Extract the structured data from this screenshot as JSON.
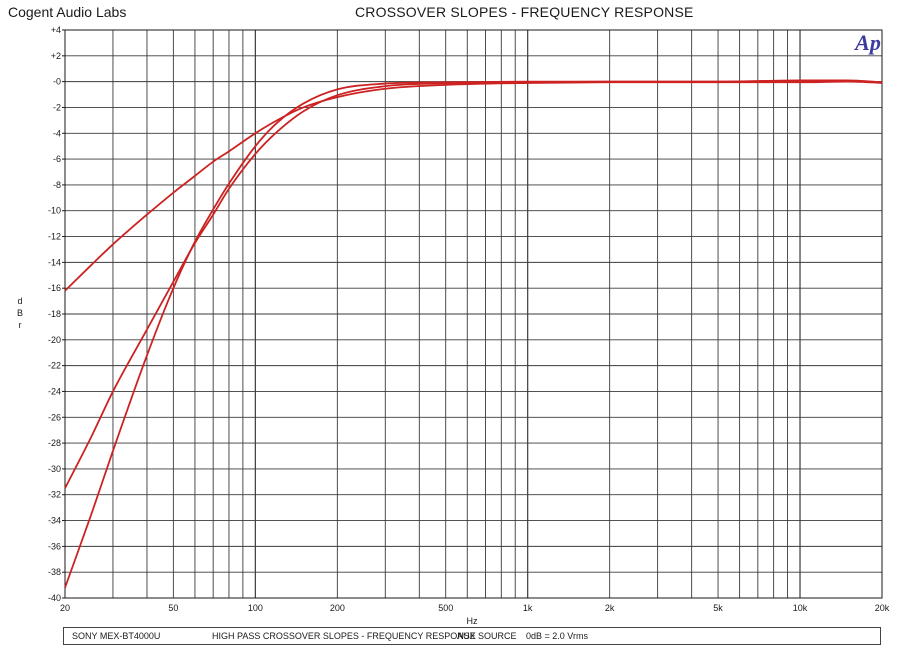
{
  "header": {
    "lab_name": "Cogent Audio Labs",
    "chart_title": "CROSSOVER SLOPES  -  FREQUENCY RESPONSE"
  },
  "footer": {
    "device": "SONY MEX-BT4000U",
    "description": "HIGH PASS CROSSOVER SLOPES -  FREQUENCY RESPONSE",
    "source": "AUX SOURCE",
    "reference": "0dB = 2.0 Vrms"
  },
  "logo": {
    "text": "Ap",
    "color": "#3a3aa0"
  },
  "colors": {
    "curve": "#cc2222",
    "grid": "#3a3a3a",
    "axis": "#1a1a1a"
  },
  "chart_data": {
    "type": "line",
    "title": "CROSSOVER SLOPES  -  FREQUENCY RESPONSE",
    "xlabel": "Hz",
    "ylabel": "dBr",
    "xscale": "log",
    "xlim": [
      20,
      20000
    ],
    "ylim": [
      -40,
      4
    ],
    "grid": true,
    "x_tick_labels": [
      {
        "value": 20,
        "label": "20"
      },
      {
        "value": 50,
        "label": "50"
      },
      {
        "value": 100,
        "label": "100"
      },
      {
        "value": 200,
        "label": "200"
      },
      {
        "value": 500,
        "label": "500"
      },
      {
        "value": 1000,
        "label": "1k"
      },
      {
        "value": 2000,
        "label": "2k"
      },
      {
        "value": 5000,
        "label": "5k"
      },
      {
        "value": 10000,
        "label": "10k"
      },
      {
        "value": 20000,
        "label": "20k"
      }
    ],
    "y_tick_labels": [
      "+4",
      "+2",
      "-0",
      "-2",
      "-4",
      "-6",
      "-8",
      "-10",
      "-12",
      "-14",
      "-16",
      "-18",
      "-20",
      "-22",
      "-24",
      "-26",
      "-28",
      "-30",
      "-32",
      "-34",
      "-36",
      "-38",
      "-40"
    ],
    "series": [
      {
        "x": [
          20,
          25,
          30,
          40,
          50,
          60,
          70,
          80,
          100,
          120,
          150,
          200,
          300,
          500,
          1000,
          2000,
          5000,
          10000,
          15000,
          20000
        ],
        "y": [
          -16.2,
          -14.2,
          -12.6,
          -10.3,
          -8.6,
          -7.3,
          -6.2,
          -5.4,
          -4.0,
          -3.0,
          -2.0,
          -1.2,
          -0.55,
          -0.25,
          -0.1,
          -0.05,
          -0.05,
          -0.05,
          0.0,
          -0.1
        ]
      },
      {
        "x": [
          20,
          25,
          30,
          40,
          50,
          60,
          70,
          80,
          100,
          120,
          150,
          200,
          300,
          500,
          1000,
          2000,
          5000,
          10000,
          15000,
          20000
        ],
        "y": [
          -31.5,
          -27.5,
          -24.0,
          -19.2,
          -15.5,
          -12.5,
          -10.3,
          -8.3,
          -5.6,
          -3.9,
          -2.3,
          -1.05,
          -0.35,
          -0.12,
          -0.05,
          0.0,
          0.0,
          0.05,
          0.05,
          -0.05
        ]
      },
      {
        "x": [
          20,
          25,
          30,
          40,
          50,
          60,
          70,
          80,
          100,
          120,
          150,
          200,
          300,
          500,
          1000,
          2000,
          5000,
          10000,
          15000,
          20000
        ],
        "y": [
          -39.2,
          -33.5,
          -28.6,
          -21.2,
          -16.0,
          -12.4,
          -9.9,
          -7.9,
          -5.0,
          -3.2,
          -1.7,
          -0.6,
          -0.15,
          -0.05,
          0.0,
          0.0,
          0.0,
          0.1,
          0.1,
          -0.05
        ]
      }
    ]
  }
}
